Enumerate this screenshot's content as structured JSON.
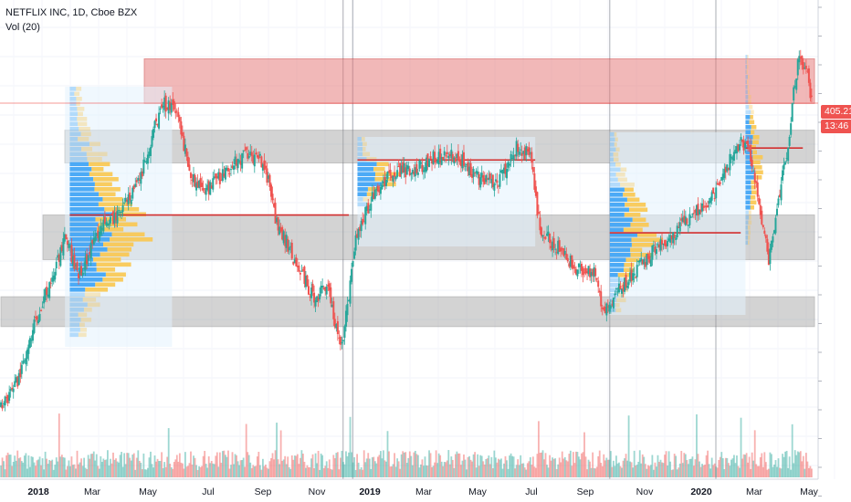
{
  "legend": {
    "title": "NETFLIX INC, 1D, Cboe BZX",
    "indicator": "Vol (20)"
  },
  "price_tags": {
    "last_price": "405.21",
    "countdown": "13:46"
  },
  "colors": {
    "up": "#26a69a",
    "down": "#ef5350",
    "zone_gray": "#9e9e9e",
    "zone_red": "#e57373",
    "profile_blue": "#42a5f5",
    "profile_yellow": "#f9c74f",
    "poc_line": "#d32f2f"
  },
  "chart_data": {
    "type": "candlestick",
    "title": "NETFLIX INC, 1D, Cboe BZX",
    "x_axis_labels": [
      "2018",
      "Mar",
      "May",
      "Jul",
      "Sep",
      "Nov",
      "2019",
      "Mar",
      "May",
      "Jul",
      "Sep",
      "Nov",
      "2020",
      "Mar",
      "May"
    ],
    "bold_labels": [
      "2018",
      "2019",
      "2020"
    ],
    "last_price": 405.21,
    "price_path": [
      [
        "2018-01-02",
        200
      ],
      [
        "2018-01-20",
        220
      ],
      [
        "2018-02-05",
        255
      ],
      [
        "2018-02-20",
        280
      ],
      [
        "2018-03-10",
        315
      ],
      [
        "2018-03-25",
        290
      ],
      [
        "2018-04-15",
        320
      ],
      [
        "2018-05-05",
        330
      ],
      [
        "2018-05-25",
        350
      ],
      [
        "2018-06-10",
        385
      ],
      [
        "2018-06-22",
        405
      ],
      [
        "2018-07-05",
        400
      ],
      [
        "2018-07-20",
        355
      ],
      [
        "2018-08-05",
        345
      ],
      [
        "2018-08-25",
        360
      ],
      [
        "2018-09-15",
        370
      ],
      [
        "2018-10-05",
        365
      ],
      [
        "2018-10-15",
        330
      ],
      [
        "2018-11-05",
        300
      ],
      [
        "2018-11-25",
        275
      ],
      [
        "2018-12-10",
        280
      ],
      [
        "2018-12-24",
        240
      ],
      [
        "2019-01-10",
        320
      ],
      [
        "2019-01-25",
        340
      ],
      [
        "2019-02-15",
        360
      ],
      [
        "2019-03-10",
        360
      ],
      [
        "2019-04-05",
        370
      ],
      [
        "2019-04-25",
        370
      ],
      [
        "2019-05-15",
        355
      ],
      [
        "2019-06-05",
        350
      ],
      [
        "2019-06-25",
        375
      ],
      [
        "2019-07-10",
        370
      ],
      [
        "2019-07-20",
        320
      ],
      [
        "2019-08-05",
        310
      ],
      [
        "2019-08-25",
        295
      ],
      [
        "2019-09-15",
        290
      ],
      [
        "2019-09-25",
        265
      ],
      [
        "2019-10-10",
        280
      ],
      [
        "2019-10-25",
        290
      ],
      [
        "2019-11-15",
        305
      ],
      [
        "2019-12-05",
        315
      ],
      [
        "2019-12-25",
        330
      ],
      [
        "2020-01-15",
        340
      ],
      [
        "2020-01-25",
        355
      ],
      [
        "2020-02-15",
        380
      ],
      [
        "2020-02-25",
        370
      ],
      [
        "2020-03-15",
        300
      ],
      [
        "2020-03-25",
        340
      ],
      [
        "2020-04-05",
        380
      ],
      [
        "2020-04-10",
        410
      ],
      [
        "2020-04-16",
        440
      ],
      [
        "2020-04-24",
        425
      ],
      [
        "2020-04-30",
        405
      ]
    ],
    "horizontal_zones": [
      {
        "kind": "supply",
        "from": "2018-06-01",
        "to": "2020-05-04",
        "low": 405,
        "high": 435
      },
      {
        "kind": "gray",
        "from": "2018-03-10",
        "to": "2020-05-04",
        "low": 365,
        "high": 387
      },
      {
        "kind": "gray",
        "from": "2018-02-15",
        "to": "2020-05-04",
        "low": 300,
        "high": 330
      },
      {
        "kind": "gray",
        "from": "2018-01-02",
        "to": "2020-05-04",
        "low": 255,
        "high": 275
      }
    ],
    "poc_lines": [
      {
        "from": "2018-03-15",
        "to": "2019-01-01",
        "price": 330
      },
      {
        "from": "2019-01-10",
        "to": "2019-07-15",
        "price": 367
      },
      {
        "from": "2019-10-01",
        "to": "2020-02-15",
        "price": 318
      },
      {
        "from": "2020-02-20",
        "to": "2020-04-20",
        "price": 375
      }
    ],
    "session_lines": [
      "2018-12-26",
      "2019-01-05",
      "2019-10-01",
      "2020-01-20"
    ]
  }
}
